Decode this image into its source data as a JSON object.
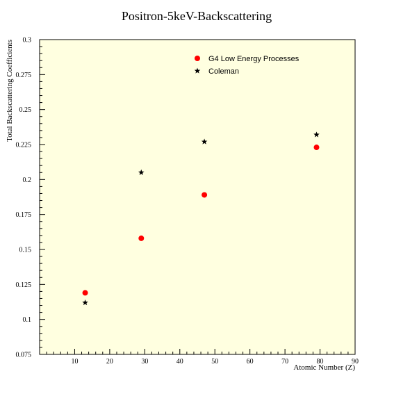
{
  "chart_data": {
    "type": "scatter",
    "title": "Positron-5keV-Backscattering",
    "xlabel": "Atomic Number (Z)",
    "ylabel": "Total Backscattering Coefficients",
    "xlim": [
      0,
      90
    ],
    "ylim": [
      0.075,
      0.3
    ],
    "x_ticks": [
      10,
      20,
      30,
      40,
      50,
      60,
      70,
      80,
      90
    ],
    "y_ticks": [
      0.075,
      0.1,
      0.125,
      0.15,
      0.175,
      0.2,
      0.225,
      0.25,
      0.275,
      0.3
    ],
    "x_tick_labels": [
      "10",
      "20",
      "30",
      "40",
      "50",
      "60",
      "70",
      "80",
      "90"
    ],
    "y_tick_labels": [
      "0.075",
      "0.1",
      "0.125",
      "0.15",
      "0.175",
      "0.2",
      "0.225",
      "0.25",
      "0.275",
      "0.3"
    ],
    "grid": false,
    "legend_position": "top-right",
    "background_color": "#ffffe0",
    "series": [
      {
        "name": "G4 Low Energy Processes",
        "marker": "circle",
        "color": "#ff0000",
        "x": [
          13,
          29,
          47,
          79
        ],
        "y": [
          0.119,
          0.158,
          0.189,
          0.223
        ]
      },
      {
        "name": "Coleman",
        "marker": "star",
        "color": "#000000",
        "x": [
          13,
          29,
          47,
          79
        ],
        "y": [
          0.112,
          0.205,
          0.227,
          0.232
        ]
      }
    ]
  }
}
